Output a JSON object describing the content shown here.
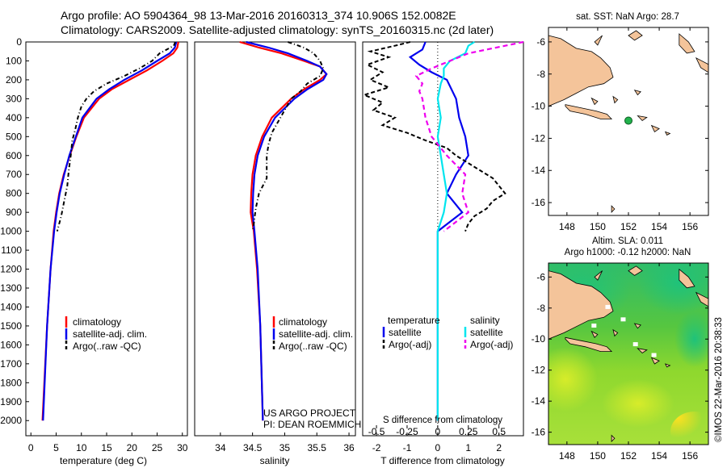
{
  "header": {
    "line1": "Argo profile: AO 5904364_98 13-Mar-2016 20160313_374 10.906S 152.0082E",
    "line2": "Climatology: CARS2009. Satellite-adjusted climatology: synTS_20160315.nc (2d later)"
  },
  "colors": {
    "climatology": "#ff0000",
    "satellite": "#0000ee",
    "argo": "#000000",
    "sat_salinity": "#00e5ee",
    "argo_salinity": "#ee00ee",
    "land": "#f4c49a"
  },
  "chart_data": [
    {
      "id": "temperature",
      "type": "line",
      "xlabel": "temperature (deg C)",
      "ylabel": "depth",
      "xlim": [
        -1,
        31
      ],
      "ylim": [
        2080,
        0
      ],
      "xticks": [
        0,
        5,
        10,
        15,
        20,
        25,
        30
      ],
      "yticks": [
        0,
        100,
        200,
        300,
        400,
        500,
        600,
        700,
        800,
        900,
        1000,
        1100,
        1200,
        1300,
        1400,
        1500,
        1600,
        1700,
        1800,
        1900,
        2000
      ],
      "legend": [
        "climatology",
        "satellite-adj. clim.",
        "Argo(..raw -QC)"
      ],
      "series": [
        {
          "name": "climatology",
          "depth": [
            0,
            30,
            60,
            100,
            150,
            200,
            250,
            300,
            400,
            500,
            600,
            700,
            800,
            900,
            1000,
            1200,
            1500,
            2000
          ],
          "values": [
            29.2,
            29.0,
            28.2,
            26.0,
            23.0,
            19.5,
            16.0,
            13.5,
            10.5,
            9.0,
            7.7,
            6.5,
            5.6,
            5.0,
            4.5,
            3.9,
            3.2,
            2.3
          ]
        },
        {
          "name": "satellite-adj. clim.",
          "depth": [
            0,
            30,
            60,
            100,
            150,
            200,
            250,
            300,
            400,
            500,
            600,
            700,
            800,
            900,
            1000,
            1200,
            1500,
            2000
          ],
          "values": [
            28.8,
            28.5,
            27.5,
            25.0,
            22.0,
            18.5,
            15.5,
            13.0,
            10.2,
            8.9,
            7.6,
            6.6,
            5.7,
            5.1,
            4.6,
            3.9,
            3.2,
            2.4
          ]
        },
        {
          "name": "Argo(..raw -QC)",
          "depth": [
            0,
            20,
            60,
            100,
            140,
            180,
            220,
            260,
            300,
            340,
            400,
            460,
            520,
            600,
            680,
            760,
            840,
            920,
            1000
          ],
          "values": [
            28.6,
            28.3,
            25.5,
            24.0,
            21.5,
            18.5,
            15.0,
            12.5,
            11.0,
            10.0,
            9.3,
            8.8,
            8.2,
            7.9,
            7.5,
            7.2,
            6.6,
            6.0,
            5.2
          ]
        }
      ]
    },
    {
      "id": "salinity",
      "type": "line",
      "xlabel": "salinity",
      "ylim": [
        2080,
        0
      ],
      "xlim": [
        33.6,
        36.1
      ],
      "xticks": [
        34,
        34.5,
        35,
        35.5,
        36
      ],
      "legend": [
        "climatology",
        "satellite-adj. clim.",
        "Argo(..raw -QC)"
      ],
      "annotation": [
        "US ARGO PROJECT",
        "PI: DEAN ROEMMICH"
      ],
      "series": [
        {
          "name": "climatology",
          "depth": [
            0,
            30,
            60,
            100,
            130,
            170,
            200,
            250,
            300,
            400,
            500,
            600,
            700,
            800,
            900,
            1000,
            1200,
            1500,
            2000
          ],
          "values": [
            34.3,
            34.6,
            34.95,
            35.3,
            35.55,
            35.65,
            35.55,
            35.3,
            35.1,
            34.8,
            34.65,
            34.55,
            34.5,
            34.48,
            34.47,
            34.52,
            34.57,
            34.62,
            34.66
          ]
        },
        {
          "name": "satellite-adj. clim.",
          "depth": [
            0,
            30,
            60,
            100,
            130,
            170,
            200,
            250,
            300,
            400,
            500,
            600,
            700,
            800,
            900,
            1000,
            1200,
            1500,
            2000
          ],
          "values": [
            34.4,
            34.75,
            35.05,
            35.35,
            35.55,
            35.65,
            35.6,
            35.35,
            35.15,
            34.85,
            34.68,
            34.58,
            34.53,
            34.51,
            34.5,
            34.53,
            34.58,
            34.62,
            34.66
          ]
        },
        {
          "name": "Argo(..raw -QC)",
          "depth": [
            0,
            30,
            60,
            100,
            140,
            180,
            220,
            260,
            300,
            360,
            420,
            480,
            540,
            600,
            660,
            720,
            800,
            880,
            960,
            1000
          ],
          "values": [
            35.05,
            35.3,
            35.45,
            35.55,
            35.6,
            35.55,
            35.35,
            35.25,
            35.1,
            35.0,
            34.9,
            34.8,
            34.75,
            34.72,
            34.72,
            34.72,
            34.6,
            34.55,
            34.52,
            34.5
          ]
        }
      ]
    },
    {
      "id": "difference",
      "type": "line",
      "xlabel": "T difference from climatology",
      "top_label": "S difference from climatology",
      "ylim": [
        2080,
        0
      ],
      "xlim": [
        -2.45,
        2.8
      ],
      "xticks": [
        -2,
        -1,
        0,
        1,
        2
      ],
      "s_ticks": [
        "-0.5",
        "-0.25",
        "0",
        "0.25",
        "0.5"
      ],
      "s_tick_positions_T": [
        -2,
        -1,
        0,
        1,
        2
      ],
      "legend_temperature": {
        "title": "temperature",
        "items": [
          "satellite",
          "Argo(-adj)"
        ]
      },
      "legend_salinity": {
        "title": "salinity",
        "items": [
          "satellite",
          "Argo(-adj)"
        ]
      },
      "series": [
        {
          "name": "temperature satellite",
          "depth": [
            0,
            40,
            80,
            120,
            160,
            200,
            300,
            400,
            500,
            600,
            700,
            800,
            900,
            1000,
            1200,
            1600,
            2000
          ],
          "values": [
            -0.4,
            -0.5,
            -0.9,
            -0.6,
            -0.2,
            0.3,
            0.6,
            0.7,
            0.9,
            1.0,
            0.6,
            0.3,
            0.8,
            0.0,
            0.0,
            0.0,
            0.0
          ]
        },
        {
          "name": "temperature Argo(-adj)",
          "depth": [
            0,
            20,
            50,
            80,
            120,
            160,
            200,
            240,
            280,
            320,
            360,
            400,
            440,
            480,
            520,
            560,
            600,
            640,
            680,
            720,
            760,
            800,
            840,
            880,
            920,
            960,
            1000
          ],
          "values": [
            -0.9,
            -1.4,
            -2.2,
            -1.6,
            -2.3,
            -1.8,
            -2.2,
            -1.6,
            -2.4,
            -1.8,
            -2.1,
            -1.4,
            -1.8,
            -1.0,
            -0.4,
            0.3,
            0.6,
            1.0,
            1.4,
            1.8,
            2.0,
            2.2,
            1.8,
            1.6,
            1.2,
            1.0,
            0.9
          ]
        },
        {
          "name": "salinity satellite",
          "depth": [
            0,
            20,
            60,
            100,
            140,
            180,
            220,
            300,
            400,
            500,
            600,
            700,
            800,
            900,
            1000,
            1200,
            1600,
            2000
          ],
          "values": [
            1.2,
            1.0,
            0.9,
            0.4,
            0.2,
            0.2,
            0.1,
            0.0,
            0.1,
            0.0,
            0.1,
            0.2,
            0.3,
            0.2,
            0.0,
            0.0,
            0.0,
            0.0
          ]
        },
        {
          "name": "salinity Argo(-adj)",
          "depth": [
            0,
            20,
            40,
            60,
            100,
            140,
            180,
            220,
            260,
            300,
            400,
            500,
            600,
            700,
            800,
            900,
            1000
          ],
          "values": [
            2.8,
            2.2,
            1.6,
            1.0,
            0.4,
            -0.2,
            -0.7,
            -0.5,
            -0.6,
            -0.5,
            -0.4,
            -0.2,
            0.3,
            0.9,
            0.8,
            1.0,
            0.2
          ]
        }
      ]
    },
    {
      "id": "sst_map",
      "type": "map",
      "title": "sat. SST: NaN  Argo: 28.7",
      "xticks": [
        "148",
        "150",
        "152",
        "154",
        "156"
      ],
      "yticks": [
        "-6",
        "-8",
        "-10",
        "-12",
        "-14",
        "-16"
      ],
      "xlim": [
        146.8,
        157.2
      ],
      "ylim": [
        -16.8,
        -5.1
      ],
      "marker": {
        "lon": 152.0,
        "lat": -10.9
      }
    },
    {
      "id": "sla_map",
      "type": "map",
      "title_line1": "Altim. SLA: 0.011",
      "title_line2": "Argo h1000: -0.12  h2000: NaN",
      "xticks": [
        "148",
        "150",
        "152",
        "154",
        "156"
      ],
      "yticks": [
        "-6",
        "-8",
        "-10",
        "-12",
        "-14",
        "-16"
      ],
      "xlim": [
        146.8,
        157.2
      ],
      "ylim": [
        -16.8,
        -5.1
      ]
    }
  ],
  "watermark": "©IMOS 22-Mar-2016 20:38:33"
}
